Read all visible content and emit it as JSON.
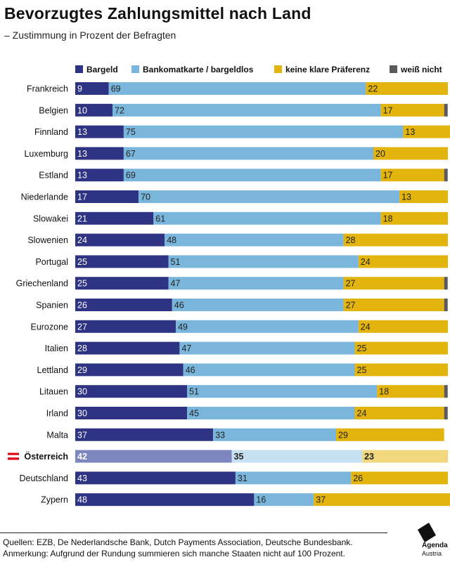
{
  "title": "Bevorzugtes Zahlungsmittel nach Land",
  "subtitle": "– Zustimmung in Prozent der Befragten",
  "colors": {
    "bargeld": "#2e3483",
    "karte": "#7ab6dc",
    "keine": "#e3b30e",
    "weiss": "#5a5a5a",
    "bargeld_highlight": "#7e86c0",
    "karte_highlight": "#c7e0f1",
    "keine_highlight": "#f1d77e",
    "flag_red": "#e30613"
  },
  "chart_data": {
    "type": "bar",
    "orientation": "horizontal",
    "stacked": true,
    "title": "Bevorzugtes Zahlungsmittel nach Land",
    "subtitle": "– Zustimmung in Prozent der Befragten",
    "xlim": [
      0,
      100
    ],
    "legend_position": "top",
    "grid": false,
    "highlight": "Österreich",
    "categories": [
      "Frankreich",
      "Belgien",
      "Finnland",
      "Luxemburg",
      "Estland",
      "Niederlande",
      "Slowakei",
      "Slowenien",
      "Portugal",
      "Griechenland",
      "Spanien",
      "Eurozone",
      "Italien",
      "Lettland",
      "Litauen",
      "Irland",
      "Malta",
      "Österreich",
      "Deutschland",
      "Zypern"
    ],
    "series": [
      {
        "name": "Bargeld",
        "color": "#2e3483",
        "values": [
          9,
          10,
          13,
          13,
          13,
          17,
          21,
          24,
          25,
          25,
          26,
          27,
          28,
          29,
          30,
          30,
          37,
          42,
          43,
          48
        ]
      },
      {
        "name": "Bankomatkarte / bargeldlos",
        "color": "#7ab6dc",
        "values": [
          69,
          72,
          75,
          67,
          69,
          70,
          61,
          48,
          51,
          47,
          46,
          49,
          47,
          46,
          51,
          45,
          33,
          35,
          31,
          16
        ]
      },
      {
        "name": "keine klare Präferenz",
        "color": "#e3b30e",
        "values": [
          22,
          17,
          13,
          20,
          17,
          13,
          18,
          28,
          24,
          27,
          27,
          24,
          25,
          25,
          18,
          24,
          29,
          23,
          26,
          37
        ]
      },
      {
        "name": "weiß nicht",
        "color": "#5a5a5a",
        "values": [
          0,
          1,
          0,
          0,
          1,
          0,
          0,
          0,
          0,
          1,
          1,
          0,
          0,
          0,
          1,
          1,
          0,
          0,
          0,
          0
        ]
      }
    ]
  },
  "footer": {
    "sources": "Quellen: EZB, De Nederlandsche Bank, Dutch Payments Association, Deutsche Bundesbank.",
    "note": "Anmerkung: Aufgrund der Rundung summieren sich manche Staaten nicht auf 100 Prozent."
  },
  "logo": {
    "line1": "Agenda",
    "line2": "Austria"
  }
}
